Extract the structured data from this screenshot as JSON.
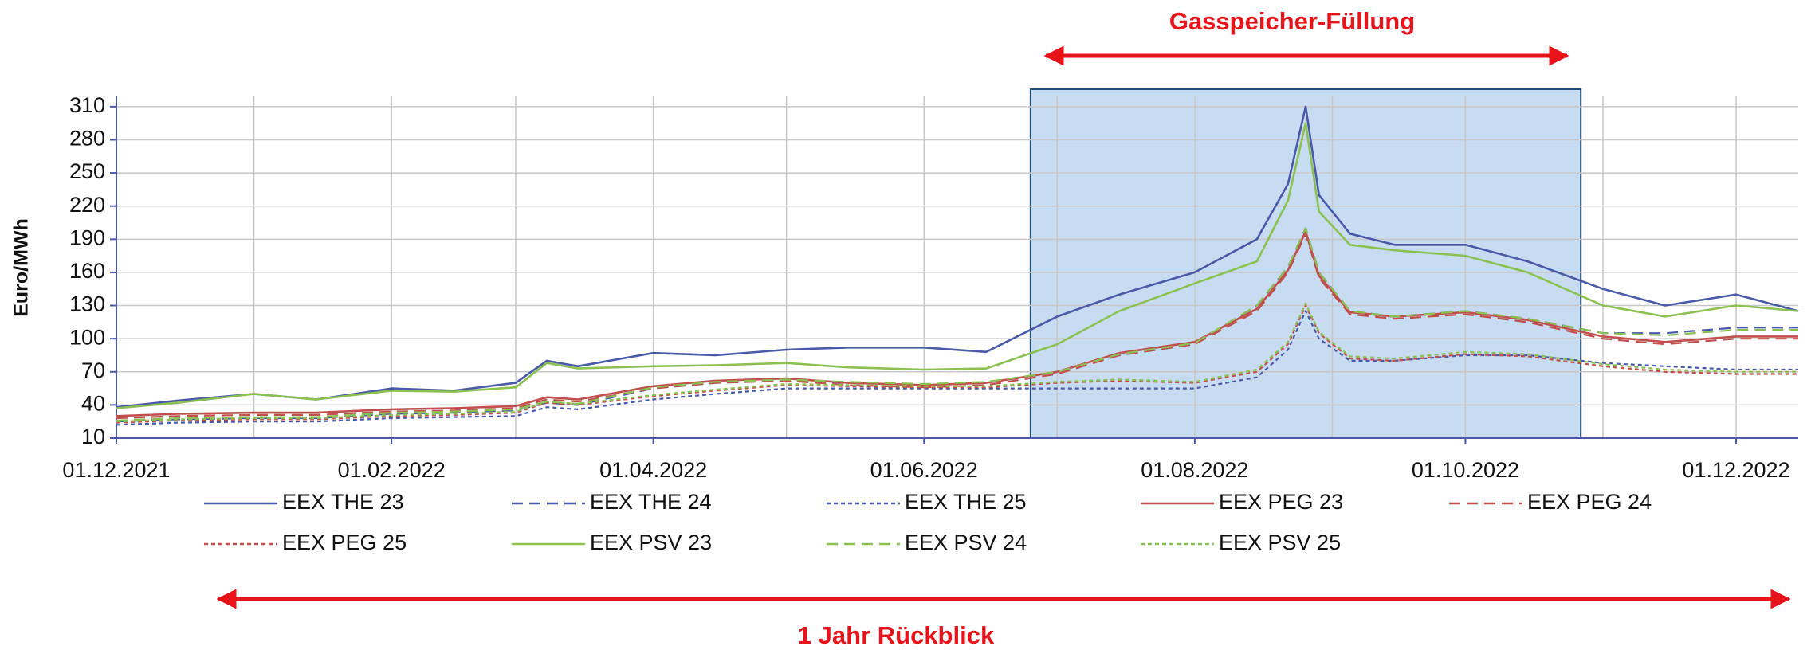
{
  "chart_data": {
    "type": "line",
    "ylabel": "Euro/MWh",
    "x": [
      "01.12.2021",
      "15.12.2021",
      "01.01.2022",
      "15.01.2022",
      "01.02.2022",
      "15.02.2022",
      "01.03.2022",
      "08.03.2022",
      "15.03.2022",
      "01.04.2022",
      "15.04.2022",
      "01.05.2022",
      "15.05.2022",
      "01.06.2022",
      "15.06.2022",
      "01.07.2022",
      "15.07.2022",
      "01.08.2022",
      "15.08.2022",
      "22.08.2022",
      "26.08.2022",
      "29.08.2022",
      "05.09.2022",
      "15.09.2022",
      "01.10.2022",
      "15.10.2022",
      "01.11.2022",
      "15.11.2022",
      "01.12.2022",
      "15.12.2022"
    ],
    "series": [
      {
        "name": "EEX THE 23",
        "color": "#4a5aa8",
        "dash": "solid",
        "values": [
          38,
          44,
          50,
          45,
          55,
          53,
          60,
          80,
          75,
          87,
          85,
          90,
          92,
          92,
          88,
          120,
          140,
          160,
          190,
          240,
          310,
          230,
          195,
          185,
          185,
          170,
          145,
          130,
          140,
          125
        ]
      },
      {
        "name": "EEX THE 24",
        "color": "#4a5aa8",
        "dash": "dashed",
        "values": [
          25,
          27,
          28,
          28,
          32,
          33,
          35,
          42,
          40,
          55,
          60,
          62,
          60,
          58,
          60,
          70,
          85,
          95,
          130,
          165,
          200,
          160,
          125,
          120,
          125,
          118,
          105,
          105,
          110,
          110
        ]
      },
      {
        "name": "EEX THE 25",
        "color": "#4a5aa8",
        "dash": "dotted",
        "values": [
          22,
          24,
          25,
          25,
          28,
          29,
          30,
          38,
          36,
          45,
          50,
          55,
          55,
          55,
          55,
          55,
          55,
          55,
          65,
          90,
          125,
          100,
          80,
          80,
          85,
          85,
          78,
          75,
          72,
          72
        ]
      },
      {
        "name": "EEX PEG 23",
        "color": "#c0504d",
        "dash": "solid",
        "values": [
          30,
          32,
          33,
          33,
          36,
          37,
          39,
          47,
          45,
          57,
          62,
          64,
          60,
          58,
          60,
          70,
          87,
          97,
          127,
          162,
          197,
          157,
          124,
          120,
          124,
          117,
          102,
          97,
          102,
          102
        ]
      },
      {
        "name": "EEX PEG 24",
        "color": "#c0504d",
        "dash": "dashed",
        "values": [
          28,
          30,
          31,
          31,
          34,
          35,
          37,
          45,
          43,
          55,
          60,
          62,
          58,
          56,
          58,
          68,
          85,
          95,
          125,
          160,
          195,
          155,
          122,
          118,
          122,
          115,
          100,
          95,
          100,
          100
        ]
      },
      {
        "name": "EEX PEG 25",
        "color": "#c0504d",
        "dash": "dotted",
        "values": [
          24,
          26,
          27,
          27,
          30,
          31,
          33,
          42,
          40,
          48,
          53,
          58,
          57,
          56,
          56,
          60,
          62,
          60,
          70,
          95,
          130,
          105,
          82,
          80,
          86,
          84,
          75,
          70,
          68,
          68
        ]
      },
      {
        "name": "EEX PSV 23",
        "color": "#8cc152",
        "dash": "solid",
        "values": [
          37,
          42,
          50,
          45,
          53,
          52,
          56,
          78,
          73,
          75,
          76,
          78,
          74,
          72,
          73,
          95,
          125,
          150,
          170,
          225,
          295,
          215,
          185,
          180,
          175,
          160,
          130,
          120,
          130,
          125
        ]
      },
      {
        "name": "EEX PSV 24",
        "color": "#8cc152",
        "dash": "dashed",
        "values": [
          26,
          28,
          29,
          29,
          33,
          34,
          36,
          43,
          41,
          56,
          61,
          63,
          61,
          59,
          61,
          70,
          86,
          96,
          130,
          165,
          200,
          160,
          125,
          120,
          125,
          118,
          105,
          103,
          108,
          108
        ]
      },
      {
        "name": "EEX PSV 25",
        "color": "#8cc152",
        "dash": "dotted",
        "values": [
          25,
          27,
          28,
          28,
          31,
          32,
          34,
          43,
          41,
          49,
          54,
          59,
          58,
          57,
          57,
          61,
          63,
          61,
          72,
          97,
          132,
          106,
          84,
          82,
          88,
          86,
          77,
          72,
          70,
          70
        ]
      }
    ],
    "xlim": [
      "01.12.2021",
      "15.12.2022"
    ],
    "xticks": [
      "01.12.2021",
      "01.02.2022",
      "01.04.2022",
      "01.06.2022",
      "01.08.2022",
      "01.10.2022",
      "01.12.2022"
    ],
    "xminor": [
      "01.01.2022",
      "01.03.2022",
      "01.05.2022",
      "01.07.2022",
      "01.09.2022",
      "01.11.2022"
    ],
    "ylim": [
      10,
      320
    ],
    "yticks": [
      10,
      40,
      70,
      100,
      130,
      160,
      190,
      220,
      250,
      280,
      310
    ],
    "grid": true,
    "highlight": {
      "from": "25.06.2022",
      "to": "27.10.2022",
      "label": "Gasspeicher-Füllung"
    },
    "span_annotation": "1 Jahr Rückblick"
  }
}
